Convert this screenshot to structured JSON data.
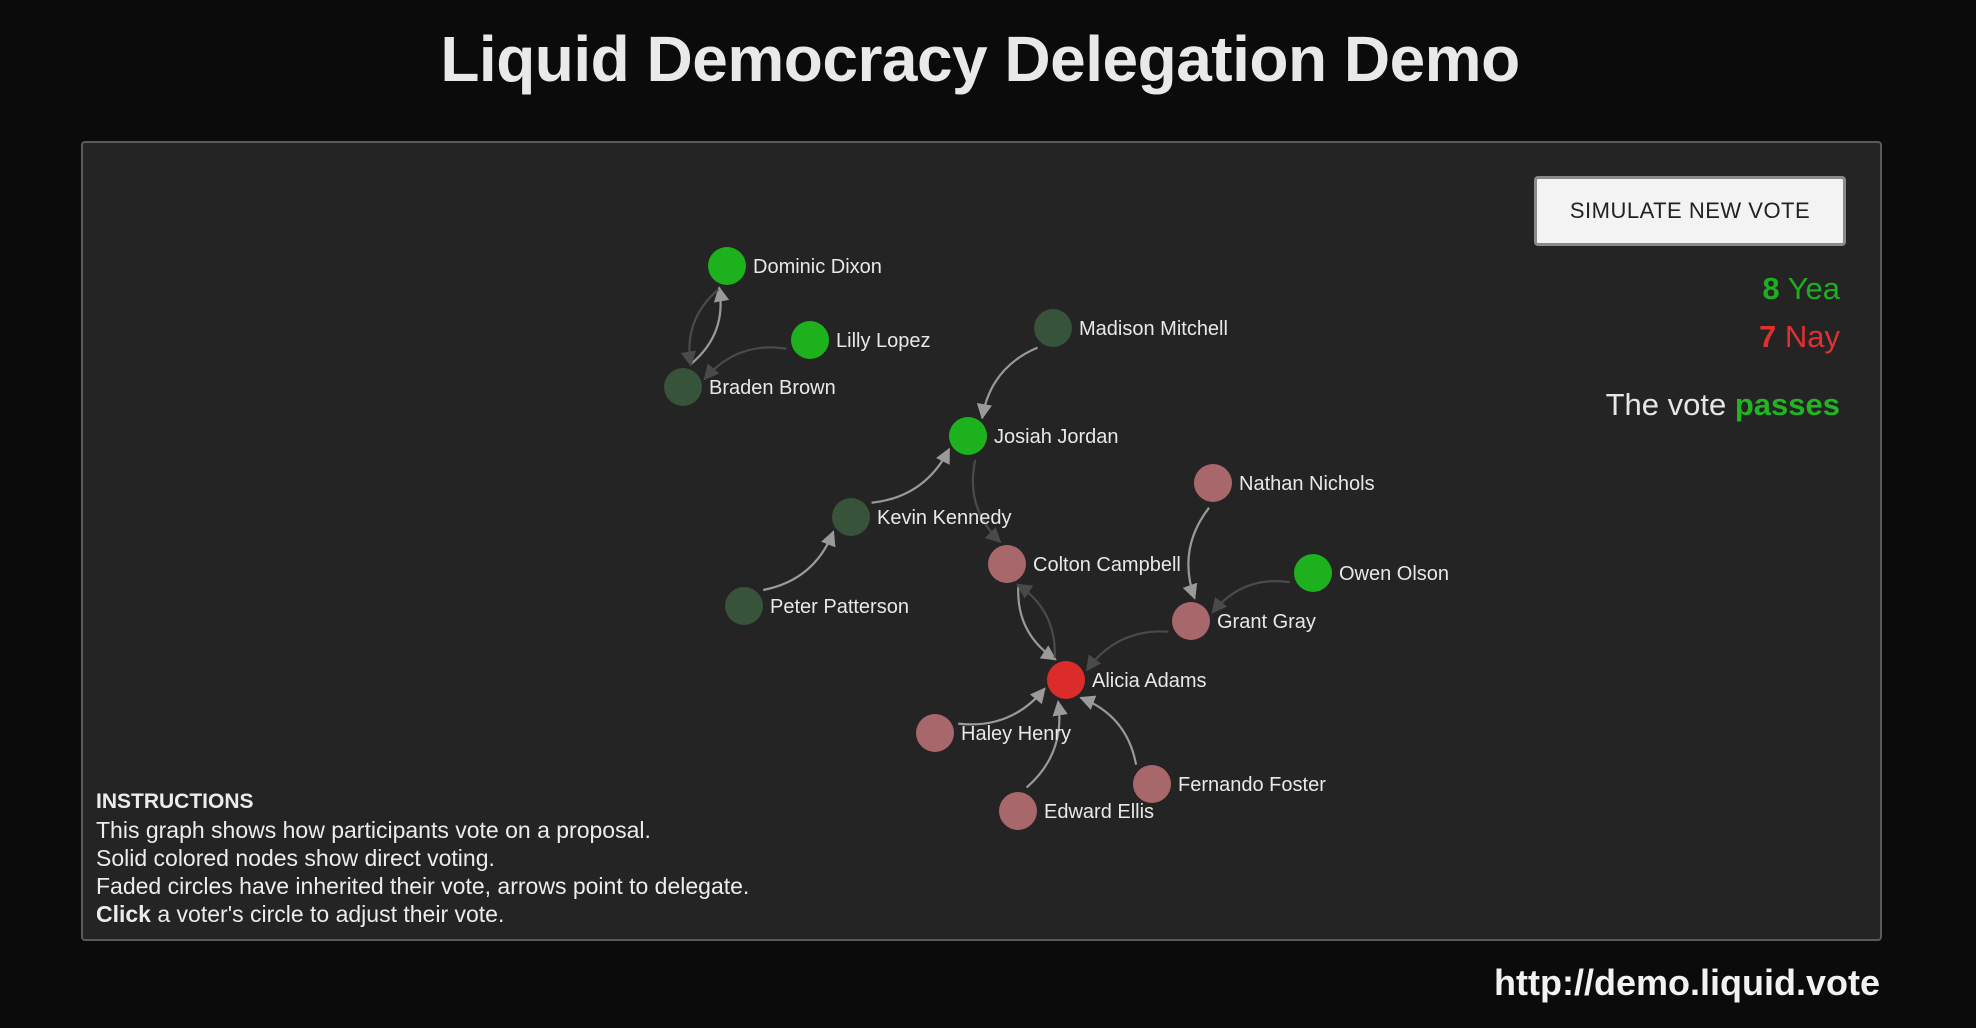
{
  "title": "Liquid Democracy Delegation Demo",
  "footer_url": "http://demo.liquid.vote",
  "simulate_button": "SIMULATE NEW VOTE",
  "tally": {
    "yea_count": "8",
    "yea_label": "Yea",
    "nay_count": "7",
    "nay_label": "Nay"
  },
  "result": {
    "prefix": "The vote",
    "outcome": "passes"
  },
  "instructions": {
    "heading": "INSTRUCTIONS",
    "line1": "This graph shows how participants vote on a proposal.",
    "line2": "Solid colored nodes show direct voting.",
    "line3": "Faded circles have inherited their vote, arrows point to delegate.",
    "line4_bold": "Click",
    "line4_rest": " a voter's circle to adjust their vote."
  },
  "colors": {
    "yea_direct": "#1db11d",
    "yea_inherited": "#37533a",
    "nay_direct": "#dc2b2b",
    "nay_inherited": "#a8686b",
    "arrow": "#9a9a9a"
  },
  "voters": [
    {
      "id": "dominic",
      "name": "Dominic Dixon",
      "vote": "yea",
      "direct": true
    },
    {
      "id": "lilly",
      "name": "Lilly Lopez",
      "vote": "yea",
      "direct": true
    },
    {
      "id": "braden",
      "name": "Braden Brown",
      "vote": "yea",
      "direct": false
    },
    {
      "id": "madison",
      "name": "Madison Mitchell",
      "vote": "yea",
      "direct": false
    },
    {
      "id": "josiah",
      "name": "Josiah Jordan",
      "vote": "yea",
      "direct": true
    },
    {
      "id": "kevin",
      "name": "Kevin Kennedy",
      "vote": "yea",
      "direct": false
    },
    {
      "id": "peter",
      "name": "Peter Patterson",
      "vote": "yea",
      "direct": false
    },
    {
      "id": "nathan",
      "name": "Nathan Nichols",
      "vote": "nay",
      "direct": false
    },
    {
      "id": "colton",
      "name": "Colton Campbell",
      "vote": "nay",
      "direct": false
    },
    {
      "id": "owen",
      "name": "Owen Olson",
      "vote": "yea",
      "direct": true
    },
    {
      "id": "grant",
      "name": "Grant Gray",
      "vote": "nay",
      "direct": false
    },
    {
      "id": "alicia",
      "name": "Alicia Adams",
      "vote": "nay",
      "direct": true
    },
    {
      "id": "haley",
      "name": "Haley Henry",
      "vote": "nay",
      "direct": false
    },
    {
      "id": "fernando",
      "name": "Fernando Foster",
      "vote": "nay",
      "direct": false
    },
    {
      "id": "edward",
      "name": "Edward Ellis",
      "vote": "nay",
      "direct": false
    }
  ],
  "delegations": [
    {
      "from": "braden",
      "to": "dominic"
    },
    {
      "from": "dominic",
      "to": "braden",
      "faint": true
    },
    {
      "from": "lilly",
      "to": "braden",
      "faint": true
    },
    {
      "from": "madison",
      "to": "josiah"
    },
    {
      "from": "kevin",
      "to": "josiah"
    },
    {
      "from": "peter",
      "to": "kevin"
    },
    {
      "from": "josiah",
      "to": "colton",
      "faint": true
    },
    {
      "from": "colton",
      "to": "alicia"
    },
    {
      "from": "alicia",
      "to": "colton",
      "faint": true
    },
    {
      "from": "nathan",
      "to": "grant"
    },
    {
      "from": "grant",
      "to": "alicia",
      "faint": true
    },
    {
      "from": "owen",
      "to": "grant",
      "faint": true
    },
    {
      "from": "haley",
      "to": "alicia"
    },
    {
      "from": "edward",
      "to": "alicia"
    },
    {
      "from": "fernando",
      "to": "alicia"
    }
  ]
}
